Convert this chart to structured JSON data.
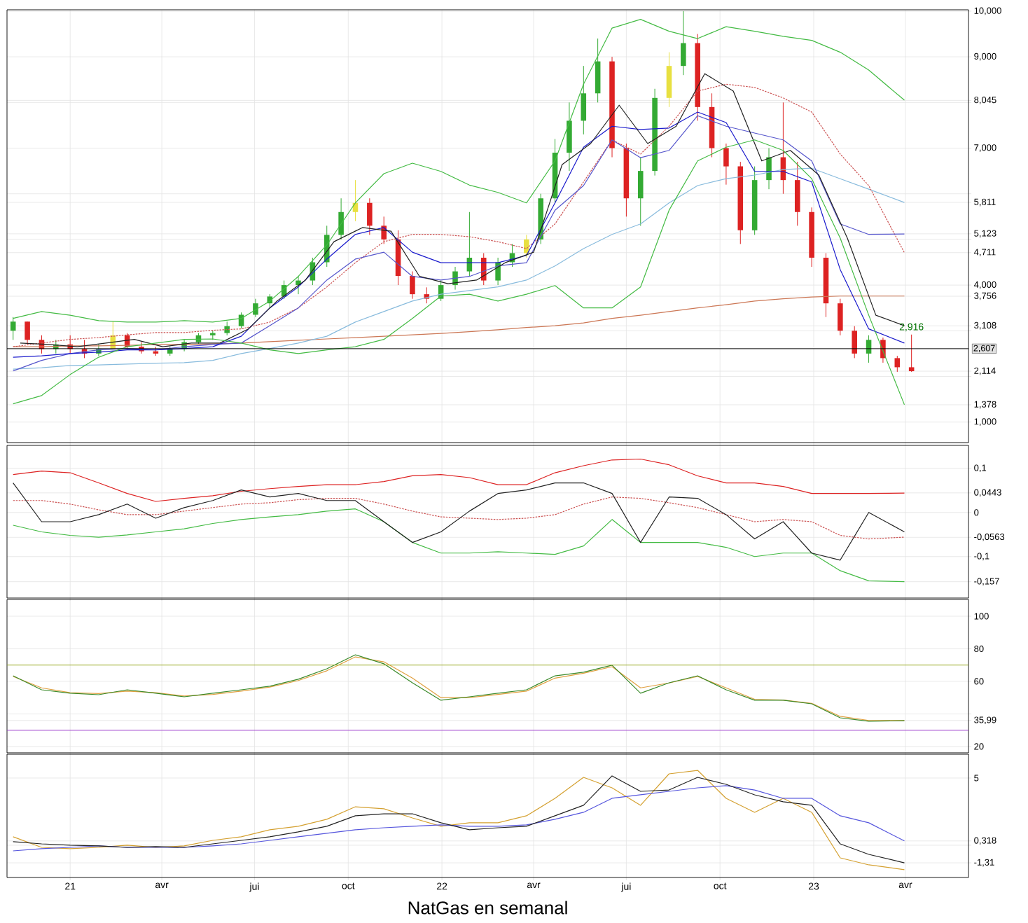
{
  "chart_data": [
    {
      "type": "candlestick",
      "grid": true,
      "tick_labels": "y",
      "xlim": [
        "2020-10-31",
        "2023-06-02"
      ],
      "xticks": [
        {
          "value": "2021-01-01",
          "label": null
        },
        {
          "value": "2021-04-01",
          "label": null
        },
        {
          "value": "2021-07-01",
          "label": null
        },
        {
          "value": "2021-10-01",
          "label": null
        },
        {
          "value": "2022-01-01",
          "label": null
        },
        {
          "value": "2022-04-01",
          "label": null
        },
        {
          "value": "2022-07-01",
          "label": null
        },
        {
          "value": "2022-10-01",
          "label": null
        },
        {
          "value": "2023-01-01",
          "label": null
        },
        {
          "value": "2023-04-01",
          "label": null
        }
      ],
      "ylim": [
        0.55,
        10.03
      ],
      "yticks": [
        {
          "value": 1,
          "label": "1,000"
        },
        {
          "value": 1.378,
          "label": "1,378"
        },
        {
          "value": 2,
          "label": null
        },
        {
          "value": 2.114,
          "label": "2,114"
        },
        {
          "value": 3,
          "label": null
        },
        {
          "value": 3.108,
          "label": "3,108"
        },
        {
          "value": 3.756,
          "label": "3,756"
        },
        {
          "value": 4,
          "label": "4,000"
        },
        {
          "value": 4.711,
          "label": "4,711"
        },
        {
          "value": 5,
          "label": null
        },
        {
          "value": 5.123,
          "label": "5,123"
        },
        {
          "value": 5.811,
          "label": "5,811"
        },
        {
          "value": 6,
          "label": null
        },
        {
          "value": 7,
          "label": "7,000"
        },
        {
          "value": 8,
          "label": null
        },
        {
          "value": 8.045,
          "label": "8,045"
        },
        {
          "value": 9,
          "label": "9,000"
        },
        {
          "value": 10,
          "label": "10,000"
        }
      ],
      "x": [
        "2020-11-06",
        "2020-11-20",
        "2020-12-04",
        "2020-12-18",
        "2021-01-01",
        "2021-01-15",
        "2021-01-29",
        "2021-02-12",
        "2021-02-26",
        "2021-03-12",
        "2021-03-26",
        "2021-04-09",
        "2021-04-23",
        "2021-05-07",
        "2021-05-21",
        "2021-06-04",
        "2021-06-18",
        "2021-07-02",
        "2021-07-16",
        "2021-07-30",
        "2021-08-13",
        "2021-08-27",
        "2021-09-10",
        "2021-09-24",
        "2021-10-08",
        "2021-10-22",
        "2021-11-05",
        "2021-11-19",
        "2021-12-03",
        "2021-12-17",
        "2021-12-31",
        "2022-01-14",
        "2022-01-28",
        "2022-02-11",
        "2022-02-25",
        "2022-03-11",
        "2022-03-25",
        "2022-04-08",
        "2022-04-22",
        "2022-05-06",
        "2022-05-20",
        "2022-06-03",
        "2022-06-17",
        "2022-07-01",
        "2022-07-15",
        "2022-07-29",
        "2022-08-12",
        "2022-08-26",
        "2022-09-09",
        "2022-09-23",
        "2022-10-07",
        "2022-10-21",
        "2022-11-04",
        "2022-11-18",
        "2022-12-02",
        "2022-12-16",
        "2022-12-30",
        "2023-01-13",
        "2023-01-27",
        "2023-02-10",
        "2023-02-24",
        "2023-03-10",
        "2023-03-24",
        "2023-04-07"
      ],
      "ohlc": [
        [
          3.0,
          3.3,
          2.8,
          3.2
        ],
        [
          3.2,
          3.2,
          2.7,
          2.8
        ],
        [
          2.8,
          2.9,
          2.5,
          2.6
        ],
        [
          2.6,
          2.8,
          2.5,
          2.7
        ],
        [
          2.7,
          2.9,
          2.5,
          2.6
        ],
        [
          2.6,
          2.8,
          2.4,
          2.5
        ],
        [
          2.5,
          2.7,
          2.45,
          2.6
        ],
        [
          2.6,
          3.2,
          2.6,
          2.9
        ],
        [
          2.9,
          2.95,
          2.6,
          2.65
        ],
        [
          2.65,
          2.75,
          2.5,
          2.55
        ],
        [
          2.55,
          2.65,
          2.45,
          2.5
        ],
        [
          2.5,
          2.65,
          2.45,
          2.6
        ],
        [
          2.6,
          2.8,
          2.55,
          2.75
        ],
        [
          2.75,
          2.95,
          2.7,
          2.9
        ],
        [
          2.9,
          3.0,
          2.8,
          2.95
        ],
        [
          2.95,
          3.2,
          2.9,
          3.1
        ],
        [
          3.1,
          3.4,
          3.05,
          3.35
        ],
        [
          3.35,
          3.7,
          3.3,
          3.6
        ],
        [
          3.6,
          3.8,
          3.5,
          3.75
        ],
        [
          3.75,
          4.1,
          3.7,
          4.0
        ],
        [
          4.0,
          4.2,
          3.8,
          4.1
        ],
        [
          4.1,
          4.6,
          4.0,
          4.5
        ],
        [
          4.5,
          5.3,
          4.4,
          5.1
        ],
        [
          5.1,
          5.9,
          5.0,
          5.6
        ],
        [
          5.6,
          6.3,
          5.4,
          5.8
        ],
        [
          5.8,
          5.9,
          5.1,
          5.3
        ],
        [
          5.3,
          5.5,
          4.9,
          5.0
        ],
        [
          5.0,
          5.2,
          4.0,
          4.2
        ],
        [
          4.2,
          4.3,
          3.7,
          3.8
        ],
        [
          3.8,
          3.95,
          3.6,
          3.7
        ],
        [
          3.7,
          4.1,
          3.65,
          4.0
        ],
        [
          4.0,
          4.4,
          3.9,
          4.3
        ],
        [
          4.3,
          5.6,
          4.2,
          4.6
        ],
        [
          4.6,
          4.7,
          4.0,
          4.1
        ],
        [
          4.1,
          4.6,
          4.0,
          4.5
        ],
        [
          4.5,
          4.9,
          4.4,
          4.7
        ],
        [
          4.7,
          5.1,
          4.6,
          5.0
        ],
        [
          5.0,
          6.0,
          4.9,
          5.9
        ],
        [
          5.9,
          7.2,
          5.8,
          6.9
        ],
        [
          6.9,
          8.0,
          6.5,
          7.6
        ],
        [
          7.6,
          8.8,
          7.3,
          8.2
        ],
        [
          8.2,
          9.4,
          8.0,
          8.9
        ],
        [
          8.9,
          9.0,
          6.8,
          7.0
        ],
        [
          7.0,
          7.1,
          5.5,
          5.9
        ],
        [
          5.9,
          6.8,
          5.3,
          6.5
        ],
        [
          6.5,
          8.3,
          6.4,
          8.1
        ],
        [
          8.1,
          9.1,
          7.9,
          8.8
        ],
        [
          8.8,
          10.0,
          8.6,
          9.3
        ],
        [
          9.3,
          9.5,
          7.6,
          7.9
        ],
        [
          7.9,
          8.2,
          6.8,
          7.0
        ],
        [
          7.0,
          7.1,
          6.2,
          6.6
        ],
        [
          6.6,
          6.7,
          4.9,
          5.2
        ],
        [
          5.2,
          6.6,
          5.1,
          6.3
        ],
        [
          6.3,
          7.0,
          6.1,
          6.8
        ],
        [
          6.8,
          8.0,
          6.0,
          6.3
        ],
        [
          6.3,
          6.7,
          5.3,
          5.6
        ],
        [
          5.6,
          5.7,
          4.4,
          4.6
        ],
        [
          4.6,
          4.7,
          3.3,
          3.6
        ],
        [
          3.6,
          3.7,
          2.9,
          3.0
        ],
        [
          3.0,
          3.1,
          2.4,
          2.5
        ],
        [
          2.5,
          2.9,
          2.3,
          2.8
        ],
        [
          2.8,
          2.85,
          2.3,
          2.4
        ],
        [
          2.4,
          2.45,
          2.1,
          2.2
        ],
        [
          2.2,
          2.916,
          2.1,
          2.114
        ]
      ],
      "colors": [
        "#33aa33",
        "#dd2222",
        "#dd2222",
        "#33aa33",
        "#dd2222",
        "#dd2222",
        "#33aa33",
        "#e8e040",
        "#dd2222",
        "#dd2222",
        "#dd2222",
        "#33aa33",
        "#33aa33",
        "#33aa33",
        "#33aa33",
        "#33aa33",
        "#33aa33",
        "#33aa33",
        "#33aa33",
        "#33aa33",
        "#33aa33",
        "#33aa33",
        "#33aa33",
        "#33aa33",
        "#e8e040",
        "#dd2222",
        "#dd2222",
        "#dd2222",
        "#dd2222",
        "#dd2222",
        "#33aa33",
        "#33aa33",
        "#33aa33",
        "#dd2222",
        "#33aa33",
        "#33aa33",
        "#e8e040",
        "#33aa33",
        "#33aa33",
        "#33aa33",
        "#33aa33",
        "#33aa33",
        "#dd2222",
        "#dd2222",
        "#33aa33",
        "#33aa33",
        "#e8e040",
        "#33aa33",
        "#dd2222",
        "#dd2222",
        "#dd2222",
        "#dd2222",
        "#33aa33",
        "#33aa33",
        "#dd2222",
        "#dd2222",
        "#dd2222",
        "#dd2222",
        "#dd2222",
        "#dd2222",
        "#33aa33",
        "#dd2222",
        "#dd2222",
        "#dd2222"
      ],
      "ref_lines": [
        {
          "axis": "y",
          "value": 2.607,
          "label": "2,607",
          "color": "#000000"
        }
      ],
      "annotations": [
        {
          "text": "2,916",
          "x": "2023-04-07",
          "y": 2.916
        }
      ],
      "series": [
        {
          "type": "line",
          "color": "#cc7755",
          "x": [
            "2020-11-06",
            "2020-12-04",
            "2021-01-01",
            "2021-01-29",
            "2021-02-26",
            "2021-03-26",
            "2021-04-23",
            "2021-05-21",
            "2021-06-18",
            "2021-07-16",
            "2021-08-13",
            "2021-09-10",
            "2021-10-08",
            "2021-11-05",
            "2021-12-03",
            "2021-12-31",
            "2022-01-28",
            "2022-02-25",
            "2022-03-25",
            "2022-04-22",
            "2022-05-20",
            "2022-06-17",
            "2022-07-15",
            "2022-08-12",
            "2022-09-09",
            "2022-10-07",
            "2022-11-04",
            "2022-12-02",
            "2022-12-30",
            "2023-01-27",
            "2023-02-24",
            "2023-03-31"
          ],
          "values": [
            2.65,
            2.65,
            2.67,
            2.67,
            2.68,
            2.7,
            2.7,
            2.71,
            2.73,
            2.76,
            2.79,
            2.82,
            2.85,
            2.88,
            2.91,
            2.94,
            2.98,
            3.02,
            3.07,
            3.11,
            3.17,
            3.27,
            3.34,
            3.42,
            3.5,
            3.57,
            3.65,
            3.7,
            3.74,
            3.76,
            3.76,
            3.76
          ]
        },
        {
          "type": "line",
          "color": "#88bbdd",
          "x": [
            "2020-11-06",
            "2020-12-04",
            "2021-01-01",
            "2021-01-29",
            "2021-02-26",
            "2021-03-26",
            "2021-04-23",
            "2021-05-21",
            "2021-06-18",
            "2021-07-16",
            "2021-08-13",
            "2021-09-10",
            "2021-10-08",
            "2021-11-05",
            "2021-12-03",
            "2021-12-31",
            "2022-01-28",
            "2022-02-25",
            "2022-03-25",
            "2022-04-22",
            "2022-05-20",
            "2022-06-17",
            "2022-07-15",
            "2022-08-12",
            "2022-09-09",
            "2022-10-07",
            "2022-11-04",
            "2022-12-02",
            "2022-12-30",
            "2023-01-27",
            "2023-02-24",
            "2023-03-31"
          ],
          "values": [
            2.16,
            2.19,
            2.24,
            2.25,
            2.27,
            2.29,
            2.3,
            2.35,
            2.5,
            2.61,
            2.73,
            2.88,
            3.19,
            3.42,
            3.65,
            3.8,
            3.88,
            3.96,
            4.11,
            4.42,
            4.8,
            5.11,
            5.34,
            5.8,
            6.18,
            6.33,
            6.41,
            6.53,
            6.56,
            6.33,
            6.1,
            5.81
          ]
        },
        {
          "type": "line",
          "line_style": "dashed",
          "color": "#cc5555",
          "x": [
            "2020-11-06",
            "2020-12-04",
            "2021-01-01",
            "2021-01-29",
            "2021-02-26",
            "2021-03-26",
            "2021-04-23",
            "2021-05-21",
            "2021-06-18",
            "2021-07-16",
            "2021-08-13",
            "2021-09-10",
            "2021-10-08",
            "2021-11-05",
            "2021-12-03",
            "2021-12-31",
            "2022-01-28",
            "2022-02-25",
            "2022-03-25",
            "2022-04-22",
            "2022-05-20",
            "2022-06-17",
            "2022-07-15",
            "2022-08-12",
            "2022-09-09",
            "2022-10-07",
            "2022-11-04",
            "2022-12-02",
            "2022-12-30",
            "2023-01-27",
            "2023-02-24",
            "2023-03-31"
          ],
          "values": [
            2.65,
            2.73,
            2.81,
            2.85,
            2.91,
            2.96,
            2.96,
            3.01,
            3.04,
            3.19,
            3.5,
            3.96,
            4.49,
            4.95,
            5.11,
            5.11,
            5.06,
            4.95,
            4.8,
            5.34,
            6.26,
            7.18,
            6.87,
            7.48,
            8.25,
            8.4,
            8.33,
            8.1,
            7.79,
            6.87,
            6.18,
            4.71
          ]
        },
        {
          "type": "line",
          "color": "#5555cc",
          "x": [
            "2020-11-06",
            "2020-12-04",
            "2021-01-01",
            "2021-01-29",
            "2021-02-26",
            "2021-03-26",
            "2021-04-23",
            "2021-05-21",
            "2021-06-18",
            "2021-07-16",
            "2021-08-13",
            "2021-09-10",
            "2021-10-08",
            "2021-11-05",
            "2021-12-03",
            "2021-12-31",
            "2022-01-28",
            "2022-02-25",
            "2022-03-25",
            "2022-04-22",
            "2022-05-20",
            "2022-06-17",
            "2022-07-15",
            "2022-08-12",
            "2022-09-09",
            "2022-10-07",
            "2022-11-04",
            "2022-12-02",
            "2022-12-30",
            "2023-01-27",
            "2023-02-24",
            "2023-03-31"
          ],
          "values": [
            2.12,
            2.35,
            2.5,
            2.58,
            2.61,
            2.58,
            2.65,
            2.7,
            2.73,
            3.11,
            3.5,
            4.11,
            4.57,
            4.72,
            4.19,
            4.11,
            4.19,
            4.42,
            4.49,
            5.64,
            6.18,
            7.18,
            6.79,
            6.95,
            7.71,
            7.48,
            7.33,
            7.18,
            6.72,
            5.34,
            5.11,
            5.12
          ]
        },
        {
          "type": "line",
          "color": "#1a1acc",
          "x": [
            "2020-11-06",
            "2020-12-04",
            "2021-01-01",
            "2021-01-29",
            "2021-02-26",
            "2021-03-26",
            "2021-04-23",
            "2021-05-21",
            "2021-06-18",
            "2021-07-16",
            "2021-08-13",
            "2021-09-10",
            "2021-10-08",
            "2021-11-05",
            "2021-12-03",
            "2021-12-31",
            "2022-01-28",
            "2022-02-25",
            "2022-03-25",
            "2022-04-22",
            "2022-05-20",
            "2022-06-17",
            "2022-07-15",
            "2022-08-12",
            "2022-09-09",
            "2022-10-07",
            "2022-11-04",
            "2022-12-02",
            "2022-12-30",
            "2023-01-27",
            "2023-02-24",
            "2023-03-31"
          ],
          "values": [
            2.42,
            2.45,
            2.5,
            2.53,
            2.58,
            2.58,
            2.61,
            2.65,
            2.88,
            3.5,
            3.96,
            4.57,
            5.11,
            5.26,
            4.72,
            4.49,
            4.49,
            4.49,
            4.65,
            5.8,
            7.02,
            7.48,
            7.41,
            7.44,
            7.79,
            7.56,
            6.49,
            6.49,
            6.26,
            4.34,
            3.04,
            2.73
          ]
        },
        {
          "type": "line",
          "color": "#222222",
          "x": [
            "2020-11-13",
            "2020-12-11",
            "2021-01-08",
            "2021-02-05",
            "2021-03-05",
            "2021-04-02",
            "2021-04-30",
            "2021-05-28",
            "2021-06-25",
            "2021-07-23",
            "2021-08-20",
            "2021-09-17",
            "2021-10-15",
            "2021-11-12",
            "2021-12-10",
            "2022-01-07",
            "2022-02-04",
            "2022-03-04",
            "2022-04-01",
            "2022-04-29",
            "2022-05-27",
            "2022-06-24",
            "2022-07-22",
            "2022-08-19",
            "2022-09-16",
            "2022-10-14",
            "2022-11-11",
            "2022-12-09",
            "2023-01-06",
            "2023-02-03",
            "2023-03-03",
            "2023-03-31"
          ],
          "values": [
            2.73,
            2.7,
            2.65,
            2.73,
            2.81,
            2.65,
            2.73,
            2.73,
            3.04,
            3.65,
            4.11,
            4.95,
            5.26,
            5.18,
            4.19,
            4.03,
            4.11,
            4.49,
            4.72,
            6.64,
            7.1,
            7.94,
            7.1,
            7.48,
            8.63,
            8.25,
            6.72,
            6.95,
            6.41,
            5.03,
            3.34,
            3.11
          ]
        },
        {
          "type": "line",
          "color": "#44bb44",
          "x": [
            "2020-11-06",
            "2020-12-04",
            "2021-01-01",
            "2021-01-29",
            "2021-02-26",
            "2021-03-26",
            "2021-04-23",
            "2021-05-21",
            "2021-06-18",
            "2021-07-16",
            "2021-08-13",
            "2021-09-10",
            "2021-10-08",
            "2021-11-05",
            "2021-12-03",
            "2021-12-31",
            "2022-01-28",
            "2022-02-25",
            "2022-03-25",
            "2022-04-22",
            "2022-05-20",
            "2022-06-17",
            "2022-07-15",
            "2022-08-12",
            "2022-09-09",
            "2022-10-07",
            "2022-11-04",
            "2022-12-02",
            "2022-12-30",
            "2023-01-27",
            "2023-02-24",
            "2023-03-31"
          ],
          "values": [
            3.27,
            3.42,
            3.34,
            3.22,
            3.19,
            3.19,
            3.22,
            3.19,
            3.27,
            3.65,
            4.19,
            4.88,
            5.8,
            6.44,
            6.67,
            6.49,
            6.19,
            6.03,
            5.8,
            6.72,
            8.4,
            9.63,
            9.82,
            9.56,
            9.4,
            9.66,
            9.56,
            9.45,
            9.36,
            9.1,
            8.71,
            8.05
          ]
        },
        {
          "type": "line",
          "color": "#44bb44",
          "x": [
            "2020-11-06",
            "2020-12-04",
            "2021-01-01",
            "2021-01-29",
            "2021-02-26",
            "2021-03-26",
            "2021-04-23",
            "2021-05-21",
            "2021-06-18",
            "2021-07-16",
            "2021-08-13",
            "2021-09-10",
            "2021-10-08",
            "2021-11-05",
            "2021-12-03",
            "2021-12-31",
            "2022-01-28",
            "2022-02-25",
            "2022-03-25",
            "2022-04-22",
            "2022-05-20",
            "2022-06-17",
            "2022-07-15",
            "2022-08-12",
            "2022-09-09",
            "2022-10-07",
            "2022-11-04",
            "2022-12-02",
            "2022-12-30",
            "2023-01-27",
            "2023-02-24",
            "2023-03-31"
          ],
          "values": [
            1.4,
            1.58,
            2.04,
            2.42,
            2.65,
            2.73,
            2.81,
            2.82,
            2.73,
            2.58,
            2.5,
            2.58,
            2.65,
            2.81,
            3.27,
            3.76,
            3.8,
            3.65,
            3.8,
            3.99,
            3.5,
            3.5,
            3.96,
            5.64,
            6.72,
            7.02,
            7.18,
            6.95,
            6.33,
            5.03,
            3.34,
            1.38
          ]
        }
      ]
    },
    {
      "type": "line",
      "grid": true,
      "tick_labels": "y",
      "xlim": [
        "2020-10-31",
        "2023-06-02"
      ],
      "xticks": [
        {
          "value": "2021-01-01",
          "label": null
        },
        {
          "value": "2021-04-01",
          "label": null
        },
        {
          "value": "2021-07-01",
          "label": null
        },
        {
          "value": "2021-10-01",
          "label": null
        },
        {
          "value": "2022-01-01",
          "label": null
        },
        {
          "value": "2022-04-01",
          "label": null
        },
        {
          "value": "2022-07-01",
          "label": null
        },
        {
          "value": "2022-10-01",
          "label": null
        },
        {
          "value": "2023-01-01",
          "label": null
        },
        {
          "value": "2023-04-01",
          "label": null
        }
      ],
      "ylim": [
        -0.194,
        0.152
      ],
      "yticks": [
        {
          "value": -0.157,
          "label": "-0,157"
        },
        {
          "value": -0.1,
          "label": "-0,1"
        },
        {
          "value": -0.0563,
          "label": "-0,0563"
        },
        0,
        {
          "value": 0.0443,
          "label": "0,0443"
        },
        {
          "value": 0.1,
          "label": "0,1"
        }
      ],
      "x": [
        "2020-11-06",
        "2020-12-04",
        "2021-01-01",
        "2021-01-29",
        "2021-02-26",
        "2021-03-26",
        "2021-04-23",
        "2021-05-21",
        "2021-06-18",
        "2021-07-16",
        "2021-08-13",
        "2021-09-10",
        "2021-10-08",
        "2021-11-05",
        "2021-12-03",
        "2021-12-31",
        "2022-01-28",
        "2022-02-25",
        "2022-03-25",
        "2022-04-22",
        "2022-05-20",
        "2022-06-17",
        "2022-07-15",
        "2022-08-12",
        "2022-09-09",
        "2022-10-07",
        "2022-11-04",
        "2022-12-02",
        "2022-12-30",
        "2023-01-27",
        "2023-02-24",
        "2023-03-31"
      ],
      "series": [
        {
          "line_style": "dashed",
          "color": "#cc5555",
          "values": [
            0.027,
            0.027,
            0.019,
            0.006,
            -0.005,
            -0.005,
            0.003,
            0.011,
            0.019,
            0.022,
            0.029,
            0.032,
            0.032,
            0.019,
            0.003,
            -0.01,
            -0.013,
            -0.016,
            -0.013,
            -0.005,
            0.019,
            0.035,
            0.032,
            0.022,
            0.011,
            -0.005,
            -0.021,
            -0.016,
            -0.021,
            -0.052,
            -0.06,
            -0.056
          ]
        },
        {
          "color": "#dd2222",
          "values": [
            0.086,
            0.094,
            0.09,
            0.067,
            0.043,
            0.025,
            0.032,
            0.038,
            0.048,
            0.054,
            0.059,
            0.063,
            0.063,
            0.07,
            0.083,
            0.086,
            0.079,
            0.063,
            0.063,
            0.09,
            0.106,
            0.119,
            0.121,
            0.108,
            0.083,
            0.067,
            0.067,
            0.059,
            0.043,
            0.043,
            0.043,
            0.044
          ]
        },
        {
          "color": "#44bb44",
          "values": [
            -0.029,
            -0.044,
            -0.052,
            -0.056,
            -0.051,
            -0.044,
            -0.037,
            -0.025,
            -0.016,
            -0.01,
            -0.005,
            0.003,
            0.008,
            -0.021,
            -0.068,
            -0.092,
            -0.092,
            -0.089,
            -0.092,
            -0.095,
            -0.076,
            -0.016,
            -0.068,
            -0.068,
            -0.068,
            -0.079,
            -0.1,
            -0.092,
            -0.092,
            -0.132,
            -0.155,
            -0.157
          ]
        },
        {
          "color": "#222222",
          "values": [
            0.067,
            -0.021,
            -0.021,
            -0.005,
            0.019,
            -0.013,
            0.011,
            0.027,
            0.051,
            0.035,
            0.043,
            0.027,
            0.027,
            -0.021,
            -0.068,
            -0.044,
            0.003,
            0.043,
            0.051,
            0.067,
            0.067,
            0.043,
            -0.068,
            0.035,
            0.032,
            -0.005,
            -0.06,
            -0.021,
            -0.092,
            -0.108,
            0.0,
            -0.044
          ]
        }
      ]
    },
    {
      "type": "line",
      "grid": true,
      "tick_labels": "y",
      "xlim": [
        "2020-10-31",
        "2023-06-02"
      ],
      "xticks": [
        {
          "value": "2021-01-01",
          "label": null
        },
        {
          "value": "2021-04-01",
          "label": null
        },
        {
          "value": "2021-07-01",
          "label": null
        },
        {
          "value": "2021-10-01",
          "label": null
        },
        {
          "value": "2022-01-01",
          "label": null
        },
        {
          "value": "2022-04-01",
          "label": null
        },
        {
          "value": "2022-07-01",
          "label": null
        },
        {
          "value": "2022-10-01",
          "label": null
        },
        {
          "value": "2023-01-01",
          "label": null
        },
        {
          "value": "2023-04-01",
          "label": null
        }
      ],
      "ylim": [
        16.1,
        110.3
      ],
      "yticks": [
        20,
        {
          "value": 35.99,
          "label": "35,99"
        },
        {
          "value": 40,
          "label": null
        },
        60,
        80,
        100
      ],
      "ref_lines": [
        {
          "axis": "y",
          "value": 70,
          "color": "#99aa22"
        },
        {
          "axis": "y",
          "value": 30,
          "color": "#9933cc"
        }
      ],
      "x": [
        "2020-11-06",
        "2020-12-04",
        "2021-01-01",
        "2021-01-29",
        "2021-02-26",
        "2021-03-26",
        "2021-04-23",
        "2021-05-21",
        "2021-06-18",
        "2021-07-16",
        "2021-08-13",
        "2021-09-10",
        "2021-10-08",
        "2021-11-05",
        "2021-12-03",
        "2021-12-31",
        "2022-01-28",
        "2022-02-25",
        "2022-03-25",
        "2022-04-22",
        "2022-05-20",
        "2022-06-17",
        "2022-07-15",
        "2022-08-12",
        "2022-09-09",
        "2022-10-07",
        "2022-11-04",
        "2022-12-02",
        "2022-12-30",
        "2023-01-27",
        "2023-02-24",
        "2023-03-31"
      ],
      "series": [
        {
          "color": "#e0a040",
          "values": [
            63.0,
            56.0,
            53.0,
            52.5,
            54.0,
            53.0,
            51.0,
            52.0,
            54.0,
            56.5,
            60.5,
            66.5,
            75.0,
            72.0,
            62.0,
            50.0,
            50.0,
            52.0,
            54.0,
            62.0,
            65.0,
            69.0,
            56.0,
            59.0,
            63.0,
            56.0,
            49.0,
            48.5,
            46.5,
            38.5,
            36.0,
            36.0
          ]
        },
        {
          "color": "#3a8a2a",
          "values": [
            63.4,
            54.8,
            52.7,
            51.8,
            54.8,
            52.7,
            50.5,
            52.7,
            54.8,
            57.0,
            61.3,
            67.7,
            76.3,
            70.8,
            59.1,
            48.4,
            50.5,
            52.7,
            54.8,
            63.4,
            65.6,
            69.9,
            52.7,
            59.1,
            63.4,
            54.8,
            48.4,
            48.4,
            46.2,
            37.6,
            35.5,
            35.8
          ]
        }
      ]
    },
    {
      "type": "line",
      "grid": true,
      "xlim": [
        "2020-10-31",
        "2023-06-02"
      ],
      "xticks": [
        {
          "value": "2021-01-01",
          "label": "21"
        },
        {
          "value": "2021-04-01",
          "label": "avr"
        },
        {
          "value": "2021-07-01",
          "label": "jui"
        },
        {
          "value": "2021-10-01",
          "label": "oct"
        },
        {
          "value": "2022-01-01",
          "label": "22"
        },
        {
          "value": "2022-04-01",
          "label": "avr"
        },
        {
          "value": "2022-07-01",
          "label": "jui"
        },
        {
          "value": "2022-10-01",
          "label": "oct"
        },
        {
          "value": "2023-01-01",
          "label": "23"
        },
        {
          "value": "2023-04-01",
          "label": "avr"
        }
      ],
      "ylim": [
        -2.4,
        6.77
      ],
      "yticks": [
        {
          "value": -1.31,
          "label": "-1,31"
        },
        {
          "value": 0,
          "label": null
        },
        {
          "value": 0.318,
          "label": "0,318"
        },
        5
      ],
      "annotations": [
        "NatGas en semanal"
      ],
      "x": [
        "2020-11-06",
        "2020-12-04",
        "2021-01-01",
        "2021-01-29",
        "2021-02-26",
        "2021-03-26",
        "2021-04-23",
        "2021-05-21",
        "2021-06-18",
        "2021-07-16",
        "2021-08-13",
        "2021-09-10",
        "2021-10-08",
        "2021-11-05",
        "2021-12-03",
        "2021-12-31",
        "2022-01-28",
        "2022-02-25",
        "2022-03-25",
        "2022-04-22",
        "2022-05-20",
        "2022-06-17",
        "2022-07-15",
        "2022-08-12",
        "2022-09-09",
        "2022-10-07",
        "2022-11-04",
        "2022-12-02",
        "2022-12-30",
        "2023-01-27",
        "2023-02-24",
        "2023-03-31"
      ],
      "series": [
        {
          "color": "#d4a030",
          "values": [
            0.63,
            -0.16,
            -0.26,
            -0.16,
            0.0,
            -0.16,
            -0.05,
            0.36,
            0.63,
            1.15,
            1.41,
            1.93,
            2.86,
            2.71,
            2.03,
            1.41,
            1.67,
            1.67,
            2.19,
            3.49,
            5.05,
            4.27,
            2.97,
            5.31,
            5.57,
            3.49,
            2.45,
            3.49,
            2.45,
            -0.94,
            -1.46,
            -1.82
          ]
        },
        {
          "color": "#5555dd",
          "values": [
            -0.42,
            -0.26,
            -0.16,
            -0.05,
            -0.16,
            -0.16,
            -0.16,
            -0.05,
            0.1,
            0.36,
            0.63,
            0.89,
            1.15,
            1.3,
            1.41,
            1.51,
            1.41,
            1.41,
            1.51,
            1.93,
            2.45,
            3.49,
            3.75,
            4.01,
            4.27,
            4.43,
            4.11,
            3.49,
            3.49,
            2.19,
            1.67,
            0.32
          ]
        },
        {
          "color": "#222222",
          "values": [
            0.26,
            0.1,
            0.0,
            -0.05,
            -0.16,
            -0.1,
            -0.16,
            0.1,
            0.36,
            0.63,
            0.99,
            1.41,
            2.19,
            2.34,
            2.34,
            1.67,
            1.15,
            1.3,
            1.41,
            2.19,
            2.97,
            5.16,
            4.01,
            4.11,
            5.05,
            4.53,
            3.75,
            3.23,
            2.97,
            0.1,
            -0.68,
            -1.31
          ]
        }
      ]
    }
  ]
}
